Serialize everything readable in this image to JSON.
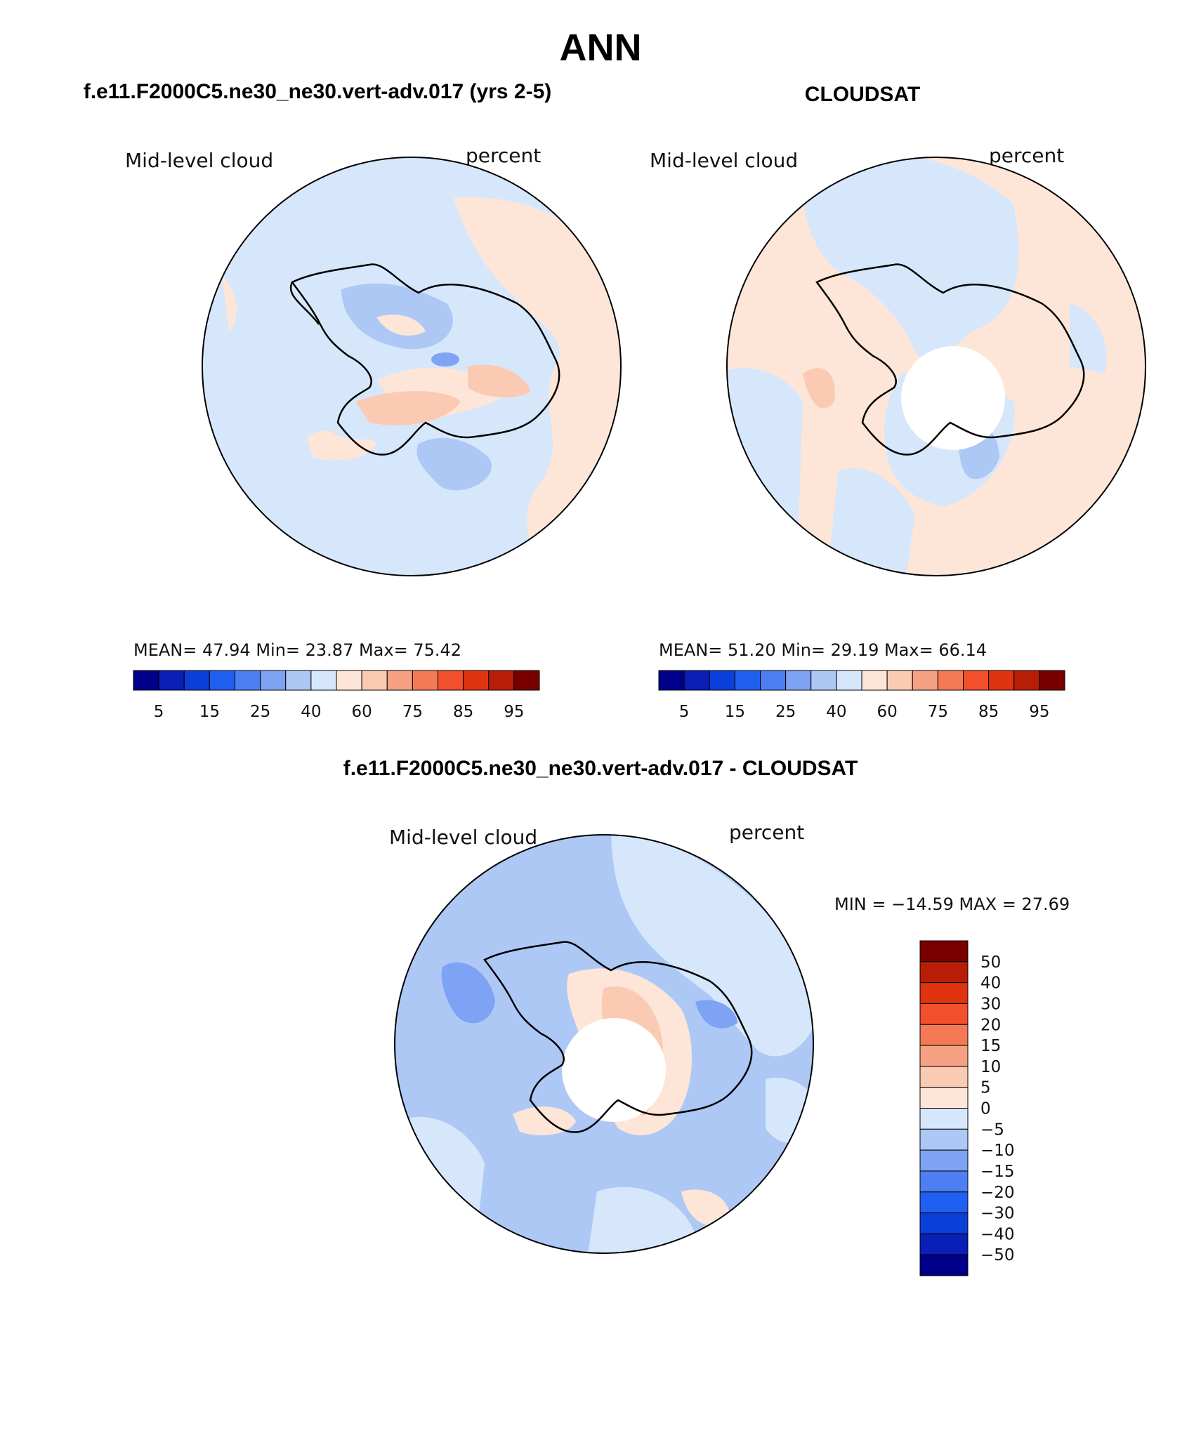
{
  "figure_title": "ANN",
  "chart_data": [
    {
      "type": "heatmap",
      "projection": "south-polar-stereographic",
      "title": "f.e11.F2000C5.ne30_ne30.vert-adv.017 (yrs 2-5)",
      "left_label": "Mid-level cloud",
      "right_label": "percent",
      "stats_text": "MEAN=   47.94   Min=   23.87   Max=   75.42",
      "stats": {
        "mean": 47.94,
        "min": 23.87,
        "max": 75.42
      },
      "colorbar": {
        "orientation": "horizontal",
        "levels": [
          "5",
          "10",
          "15",
          "20",
          "25",
          "30",
          "40",
          "50",
          "60",
          "70",
          "75",
          "80",
          "85",
          "90",
          "95"
        ],
        "labels": [
          "5",
          "15",
          "25",
          "40",
          "60",
          "75",
          "85",
          "95"
        ],
        "colors": [
          "#00008b",
          "#0a1fb5",
          "#0b3fd9",
          "#2060f0",
          "#4d7ff2",
          "#7ea2f4",
          "#aec8f6",
          "#d7e7fb",
          "#fde6d8",
          "#fbcab2",
          "#f6a183",
          "#f47a55",
          "#f1502b",
          "#e0330f",
          "#b81e07",
          "#7a0000"
        ]
      }
    },
    {
      "type": "heatmap",
      "projection": "south-polar-stereographic",
      "title": "CLOUDSAT",
      "left_label": "Mid-level cloud",
      "right_label": "percent",
      "stats_text": "MEAN=   51.20   Min=   29.19   Max=   66.14",
      "stats": {
        "mean": 51.2,
        "min": 29.19,
        "max": 66.14
      },
      "colorbar": {
        "orientation": "horizontal",
        "levels": [
          "5",
          "10",
          "15",
          "20",
          "25",
          "30",
          "40",
          "50",
          "60",
          "70",
          "75",
          "80",
          "85",
          "90",
          "95"
        ],
        "labels": [
          "5",
          "15",
          "25",
          "40",
          "60",
          "75",
          "85",
          "95"
        ],
        "colors": [
          "#00008b",
          "#0a1fb5",
          "#0b3fd9",
          "#2060f0",
          "#4d7ff2",
          "#7ea2f4",
          "#aec8f6",
          "#d7e7fb",
          "#fde6d8",
          "#fbcab2",
          "#f6a183",
          "#f47a55",
          "#f1502b",
          "#e0330f",
          "#b81e07",
          "#7a0000"
        ]
      }
    },
    {
      "type": "heatmap",
      "projection": "south-polar-stereographic",
      "title": "f.e11.F2000C5.ne30_ne30.vert-adv.017 - CLOUDSAT",
      "left_label": "Mid-level cloud",
      "right_label": "percent",
      "stats_text": "MIN = −14.59 MAX =   27.69",
      "stats": {
        "min": -14.59,
        "max": 27.69
      },
      "colorbar": {
        "orientation": "vertical",
        "levels": [
          "50",
          "40",
          "30",
          "20",
          "15",
          "10",
          "5",
          "0",
          "−5",
          "−10",
          "−15",
          "−20",
          "−30",
          "−40",
          "−50"
        ],
        "labels": [
          "50",
          "40",
          "30",
          "20",
          "15",
          "10",
          "5",
          "0",
          "−5",
          "−10",
          "−15",
          "−20",
          "−30",
          "−40",
          "−50"
        ],
        "colors": [
          "#7a0000",
          "#b81e07",
          "#e0330f",
          "#f1502b",
          "#f47a55",
          "#f6a183",
          "#fbcab2",
          "#fde6d8",
          "#d7e7fb",
          "#aec8f6",
          "#7ea2f4",
          "#4d7ff2",
          "#2060f0",
          "#0b3fd9",
          "#0a1fb5",
          "#00008b"
        ]
      }
    }
  ]
}
